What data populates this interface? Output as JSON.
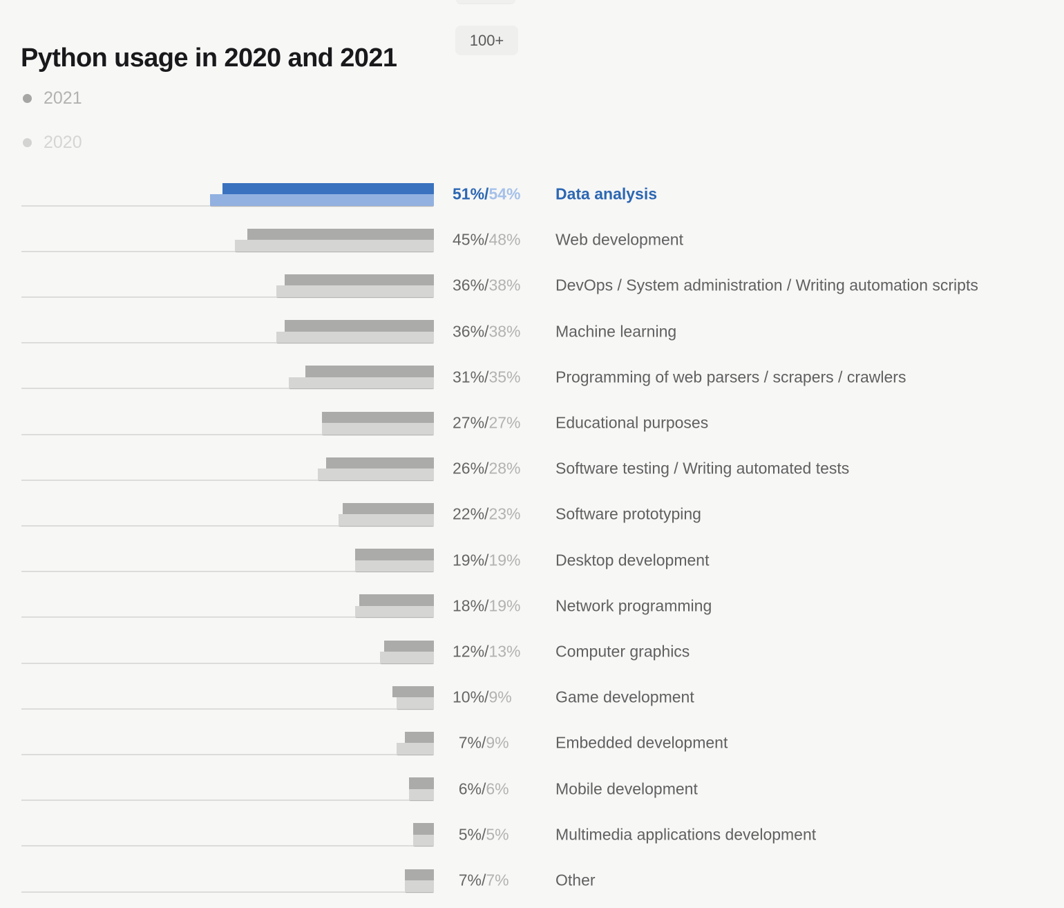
{
  "header": {
    "title": "Python usage in 2020 and 2021",
    "badge": "100+"
  },
  "legend": {
    "items": [
      {
        "label": "2021",
        "dot_color": "#a6a6a5",
        "text_color": "#b2b2b1"
      },
      {
        "label": "2020",
        "dot_color": "#d3d3d2",
        "text_color": "#d5d5d4"
      }
    ]
  },
  "chart_data": {
    "type": "bar",
    "orientation": "horizontal-right-aligned",
    "title": "Python usage in 2020 and 2021",
    "unit": "%",
    "xlim": [
      0,
      100
    ],
    "legend_position": "top-left",
    "grid": "per-row baseline only",
    "categories": [
      "Data analysis",
      "Web development",
      "DevOps / System administration / Writing automation scripts",
      "Machine learning",
      "Programming of web parsers / scrapers / crawlers",
      "Educational purposes",
      "Software testing / Writing automated tests",
      "Software prototyping",
      "Desktop development",
      "Network programming",
      "Computer graphics",
      "Game development",
      "Embedded development",
      "Mobile development",
      "Multimedia applications development",
      "Other"
    ],
    "series": [
      {
        "name": "2021",
        "values": [
          51,
          45,
          36,
          36,
          31,
          27,
          26,
          22,
          19,
          18,
          12,
          10,
          7,
          6,
          5,
          7
        ]
      },
      {
        "name": "2020",
        "values": [
          54,
          48,
          38,
          38,
          35,
          27,
          28,
          23,
          19,
          19,
          13,
          9,
          9,
          6,
          5,
          7
        ]
      }
    ],
    "value_label_pattern": "{2021}%/{2020}%",
    "highlight_category": "Data analysis"
  },
  "colors": {
    "background": "#f7f7f6",
    "bar_2021_highlight": "#3a72bf",
    "bar_2020_highlight": "#92b1e0",
    "bar_2021_gray": "#ababaa",
    "bar_2020_gray": "#d5d5d4",
    "value_text_dark": "#666665",
    "value_text_light": "#b2b2b1",
    "highlight_text_dark": "#2c67b2",
    "highlight_text_light": "#a5c1e9",
    "category_text": "#606060",
    "baseline": "#dcdcdb",
    "title_text": "#19191c",
    "badge_bg": "#efefee",
    "badge_text": "#5a5a5a"
  }
}
